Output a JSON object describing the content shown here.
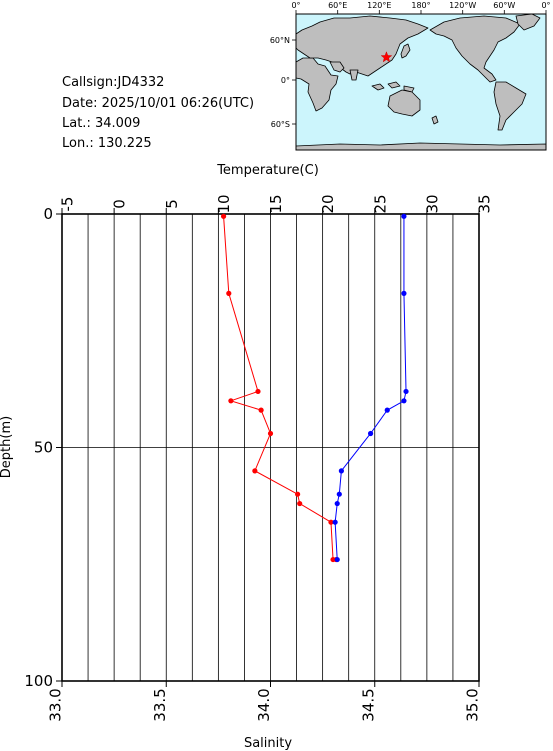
{
  "header": {
    "callsign": "Callsign:JD4332",
    "date": "Date:  2025/10/01 06:26(UTC)",
    "lat": "Lat.:  34.009",
    "lon": "Lon.:  130.225"
  },
  "map": {
    "top_ticks": [
      "0°",
      "60°E",
      "120°E",
      "180°",
      "120°W",
      "60°W",
      "0°"
    ],
    "left_ticks": [
      "60°N",
      "0°",
      "60°S"
    ],
    "marker": {
      "lat": 34.009,
      "lon": 130.225,
      "symbol": "star",
      "color": "#ff0000"
    },
    "colors": {
      "ocean": "#ccf5fc",
      "land": "#bebebe"
    }
  },
  "chart_data": {
    "type": "line",
    "top_axis_label": "Temperature(C)",
    "bottom_axis_label": "Salinity",
    "y_axis_label": "Depth(m)",
    "temperature_range": [
      -5,
      35
    ],
    "salinity_range": [
      33.0,
      35.0
    ],
    "depth_range": [
      0,
      100
    ],
    "y_inverted": true,
    "temperature_ticks": [
      "-5",
      "0",
      "5",
      "10",
      "15",
      "20",
      "25",
      "30",
      "35"
    ],
    "salinity_ticks": [
      "33.0",
      "33.5",
      "34.0",
      "34.5",
      "35.0"
    ],
    "depth_ticks": [
      "0",
      "50",
      "100"
    ],
    "grid": "vertical lines every 2.5°C; horizontal line at 50 m",
    "series": [
      {
        "quantity": "temperature",
        "color": "#ff0000",
        "depth": [
          0.5,
          17,
          38,
          40,
          42,
          47,
          55,
          60,
          62,
          66,
          74,
          74
        ],
        "values": [
          10.5,
          11.0,
          13.8,
          11.2,
          14.1,
          15.0,
          13.5,
          17.6,
          17.8,
          20.8,
          21.0,
          21.3
        ]
      },
      {
        "quantity": "salinity",
        "color": "#0000ff",
        "depth": [
          0.5,
          17,
          38,
          40,
          42,
          47,
          55,
          60,
          62,
          66,
          74
        ],
        "values": [
          34.64,
          34.64,
          34.65,
          34.64,
          34.56,
          34.48,
          34.34,
          34.33,
          34.32,
          34.31,
          34.32
        ]
      }
    ]
  }
}
